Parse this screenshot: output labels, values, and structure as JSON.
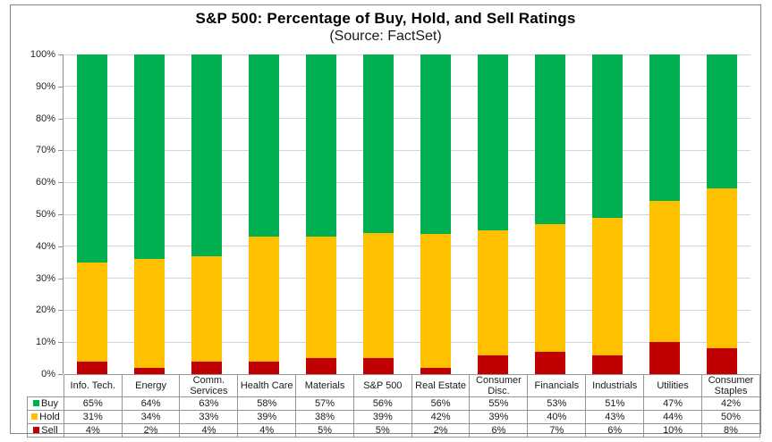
{
  "title": "S&P 500: Percentage of Buy, Hold, and Sell Ratings",
  "subtitle": "(Source: FactSet)",
  "chart_data": {
    "type": "bar",
    "stacked": true,
    "orientation": "vertical",
    "title": "S&P 500: Percentage of Buy, Hold, and Sell Ratings",
    "subtitle": "(Source: FactSet)",
    "categories": [
      "Info. Tech.",
      "Energy",
      "Comm.\nServices",
      "Health Care",
      "Materials",
      "S&P 500",
      "Real Estate",
      "Consumer\nDisc.",
      "Financials",
      "Industrials",
      "Utilities",
      "Consumer\nStaples"
    ],
    "series": [
      {
        "name": "Buy",
        "color": "#00B050",
        "values": [
          65,
          64,
          63,
          58,
          57,
          56,
          56,
          55,
          53,
          51,
          47,
          42
        ]
      },
      {
        "name": "Hold",
        "color": "#FFC000",
        "values": [
          31,
          34,
          33,
          39,
          38,
          39,
          42,
          39,
          40,
          43,
          44,
          50
        ]
      },
      {
        "name": "Sell",
        "color": "#C00000",
        "values": [
          4,
          2,
          4,
          4,
          5,
          5,
          2,
          6,
          7,
          6,
          10,
          8
        ]
      }
    ],
    "value_suffix": "%",
    "ylim": [
      0,
      100
    ],
    "ytick_step": 10,
    "ytick_labels": [
      "0%",
      "10%",
      "20%",
      "30%",
      "40%",
      "50%",
      "60%",
      "70%",
      "80%",
      "90%",
      "100%"
    ],
    "grid": true,
    "legend_position": "data-table-left",
    "colors": {
      "grid": "#d6d6d6",
      "axis": "#8c8c8c",
      "table_border": "#969696",
      "text": "#1a1a1a"
    }
  }
}
